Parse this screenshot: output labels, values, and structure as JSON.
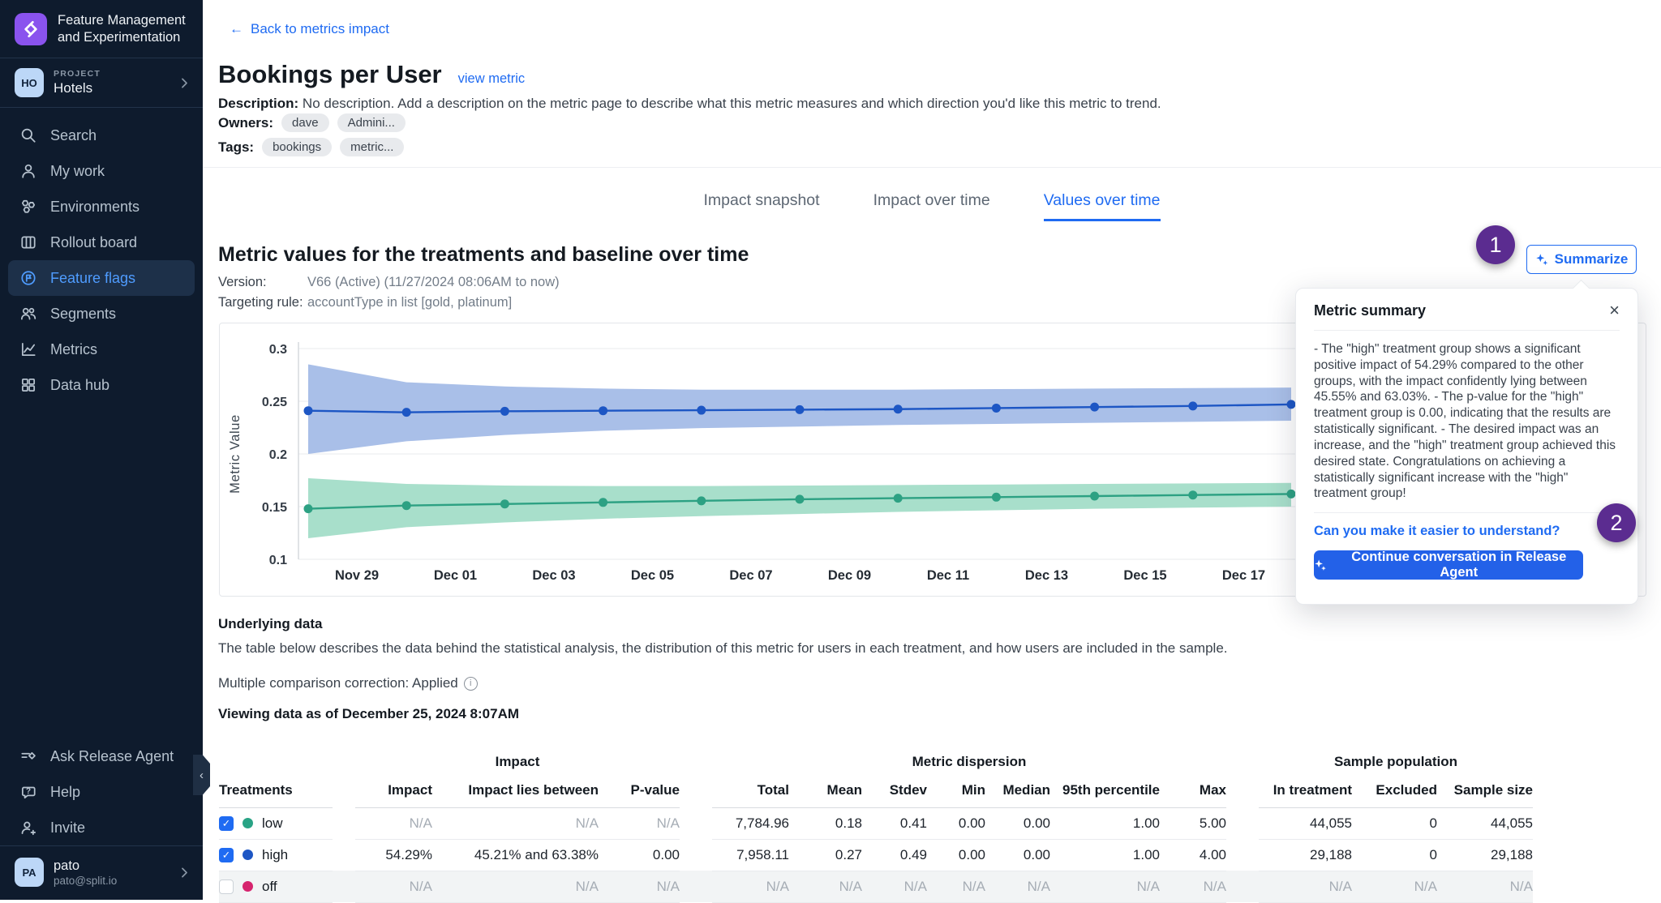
{
  "icons": {
    "back_arrow": "←",
    "close": "×",
    "chevron": "›",
    "collapse": "‹",
    "info": "i",
    "check": "✓"
  },
  "colors": {
    "accent_blue": "#1f6bf2",
    "annotation_purple": "#5b2c90",
    "sidebar_bg": "#0e1b2d",
    "active_nav": "#4f9cff"
  },
  "sidebar": {
    "logo_title": "Feature Management and Experimentation",
    "project": {
      "label": "PROJECT",
      "name": "Hotels",
      "avatar": "HO"
    },
    "items": [
      {
        "icon": "search",
        "label": "Search",
        "active": false
      },
      {
        "icon": "person",
        "label": "My work",
        "active": false
      },
      {
        "icon": "hexagons",
        "label": "Environments",
        "active": false
      },
      {
        "icon": "board",
        "label": "Rollout board",
        "active": false
      },
      {
        "icon": "flag",
        "label": "Feature flags",
        "active": true
      },
      {
        "icon": "people",
        "label": "Segments",
        "active": false
      },
      {
        "icon": "chart",
        "label": "Metrics",
        "active": false
      },
      {
        "icon": "grid",
        "label": "Data hub",
        "active": false
      }
    ],
    "footer_items": [
      {
        "icon": "agent",
        "label": "Ask Release Agent"
      },
      {
        "icon": "help",
        "label": "Help"
      },
      {
        "icon": "invite",
        "label": "Invite"
      }
    ],
    "user": {
      "name": "pato",
      "email": "pato@split.io",
      "avatar": "PA"
    }
  },
  "header": {
    "back_link": "Back to metrics impact",
    "title": "Bookings per User",
    "view_metric": "view metric",
    "description_label": "Description:",
    "description": "No description. Add a description on the metric page to describe what this metric measures and which direction you'd like this metric to trend.",
    "owners_label": "Owners:",
    "owners": [
      "dave",
      "Admini..."
    ],
    "tags_label": "Tags:",
    "tags": [
      "bookings",
      "metric..."
    ]
  },
  "tabs": [
    {
      "label": "Impact snapshot",
      "active": false
    },
    {
      "label": "Impact over time",
      "active": false
    },
    {
      "label": "Values over time",
      "active": true
    }
  ],
  "section": {
    "title": "Metric values for the treatments and baseline over time",
    "version_label": "Version:",
    "version_value": "V66 (Active) (11/27/2024 08:06AM to now)",
    "targeting_label": "Targeting rule:",
    "targeting_value": "accountType in list [gold, platinum]",
    "summarize_label": "Summarize"
  },
  "annotations": {
    "badge1": "1",
    "badge2": "2"
  },
  "chart_data": {
    "type": "line",
    "title": "Metric values for the treatments and baseline over time",
    "ylabel": "Metric Value",
    "ylim": [
      0.1,
      0.3
    ],
    "yticks": [
      "0.1",
      "0.15",
      "0.2",
      "0.25",
      "0.3"
    ],
    "xticklabels": [
      "Nov 29",
      "Dec 01",
      "Dec 03",
      "Dec 05",
      "Dec 07",
      "Dec 09",
      "Dec 11",
      "Dec 13",
      "Dec 15",
      "Dec 17"
    ],
    "grid": true,
    "legend_position": "none",
    "series": [
      {
        "name": "high",
        "line_color": "#1d56c4",
        "band_color": "#a9bfe8",
        "values": [
          0.241,
          0.2395,
          0.2405,
          0.241,
          0.2415,
          0.242,
          0.2425,
          0.2435,
          0.2445,
          0.2455,
          0.247
        ],
        "upper": [
          0.285,
          0.268,
          0.264,
          0.262,
          0.261,
          0.261,
          0.261,
          0.2615,
          0.262,
          0.2625,
          0.263
        ],
        "lower": [
          0.2,
          0.212,
          0.218,
          0.222,
          0.2245,
          0.226,
          0.2275,
          0.2285,
          0.2295,
          0.2305,
          0.2315
        ]
      },
      {
        "name": "low",
        "line_color": "#2da183",
        "band_color": "#a8dfcb",
        "values": [
          0.148,
          0.151,
          0.1525,
          0.154,
          0.1555,
          0.157,
          0.158,
          0.159,
          0.16,
          0.161,
          0.162
        ],
        "upper": [
          0.177,
          0.1715,
          0.17,
          0.1695,
          0.1695,
          0.17,
          0.1705,
          0.171,
          0.1715,
          0.172,
          0.1725
        ],
        "lower": [
          0.12,
          0.1305,
          0.135,
          0.1385,
          0.141,
          0.143,
          0.145,
          0.1465,
          0.148,
          0.149,
          0.15
        ]
      }
    ]
  },
  "summary_popup": {
    "title": "Metric summary",
    "body": "- The \"high\" treatment group shows a significant positive impact of 54.29% compared to the other groups, with the impact confidently lying between 45.55% and 63.03%. - The p-value for the \"high\" treatment group is 0.00, indicating that the results are statistically significant. - The desired impact was an increase, and the \"high\" treatment group achieved this desired state. Congratulations on achieving a statistically significant increase with the \"high\" treatment group!",
    "question_link": "Can you make it easier to understand?",
    "cta": "Continue conversation in Release Agent"
  },
  "underlying": {
    "title": "Underlying data",
    "description": "The table below describes the data behind the statistical analysis, the distribution of this metric for users in each treatment, and how users are included in the sample.",
    "correction": "Multiple comparison correction: Applied",
    "viewing": "Viewing data as of December 25, 2024 8:07AM"
  },
  "table": {
    "groups": [
      "Impact",
      "Metric dispersion",
      "Sample population"
    ],
    "columns": [
      "Treatments",
      "Impact",
      "Impact lies between",
      "P-value",
      "Total",
      "Mean",
      "Stdev",
      "Min",
      "Median",
      "95th percentile",
      "Max",
      "In treatment",
      "Excluded",
      "Sample size"
    ],
    "rows": [
      {
        "name": "low",
        "checked": true,
        "color": "#29a385",
        "values": [
          "N/A",
          "N/A",
          "N/A",
          "7,784.96",
          "0.18",
          "0.41",
          "0.00",
          "0.00",
          "1.00",
          "5.00",
          "44,055",
          "0",
          "44,055"
        ]
      },
      {
        "name": "high",
        "checked": true,
        "color": "#1d56c4",
        "values": [
          "54.29%",
          "45.21% and 63.38%",
          "0.00",
          "7,958.11",
          "0.27",
          "0.49",
          "0.00",
          "0.00",
          "1.00",
          "4.00",
          "29,188",
          "0",
          "29,188"
        ]
      },
      {
        "name": "off",
        "checked": false,
        "color": "#d6246e",
        "values": [
          "N/A",
          "N/A",
          "N/A",
          "N/A",
          "N/A",
          "N/A",
          "N/A",
          "N/A",
          "N/A",
          "N/A",
          "N/A",
          "N/A",
          "N/A"
        ]
      }
    ]
  }
}
